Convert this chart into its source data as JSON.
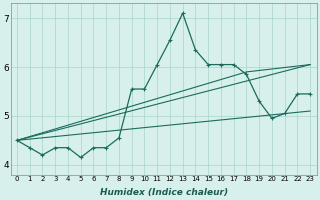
{
  "xlabel": "Humidex (Indice chaleur)",
  "xlim": [
    -0.5,
    23.5
  ],
  "ylim": [
    3.8,
    7.3
  ],
  "yticks": [
    4,
    5,
    6,
    7
  ],
  "xticks": [
    0,
    1,
    2,
    3,
    4,
    5,
    6,
    7,
    8,
    9,
    10,
    11,
    12,
    13,
    14,
    15,
    16,
    17,
    18,
    19,
    20,
    21,
    22,
    23
  ],
  "bg_color": "#d8f0ec",
  "line_color": "#1a6b5c",
  "grid_color": "#aad4cc",
  "main_x": [
    0,
    1,
    2,
    3,
    4,
    5,
    6,
    7,
    8,
    9,
    10,
    11,
    12,
    13,
    14,
    15,
    16,
    17,
    18,
    19,
    20,
    21,
    22,
    23
  ],
  "main_y": [
    4.5,
    4.35,
    4.2,
    4.35,
    4.35,
    4.15,
    4.35,
    4.35,
    4.55,
    5.55,
    5.55,
    6.05,
    6.55,
    7.1,
    6.35,
    6.05,
    6.05,
    6.05,
    5.85,
    5.3,
    4.95,
    5.05,
    5.45,
    5.45
  ],
  "env_line1_x": [
    0,
    23
  ],
  "env_line1_y": [
    4.5,
    6.05
  ],
  "env_line2_x": [
    0,
    18,
    23
  ],
  "env_line2_y": [
    4.5,
    5.9,
    6.05
  ],
  "env_line3_x": [
    0,
    23
  ],
  "env_line3_y": [
    4.5,
    5.1
  ]
}
